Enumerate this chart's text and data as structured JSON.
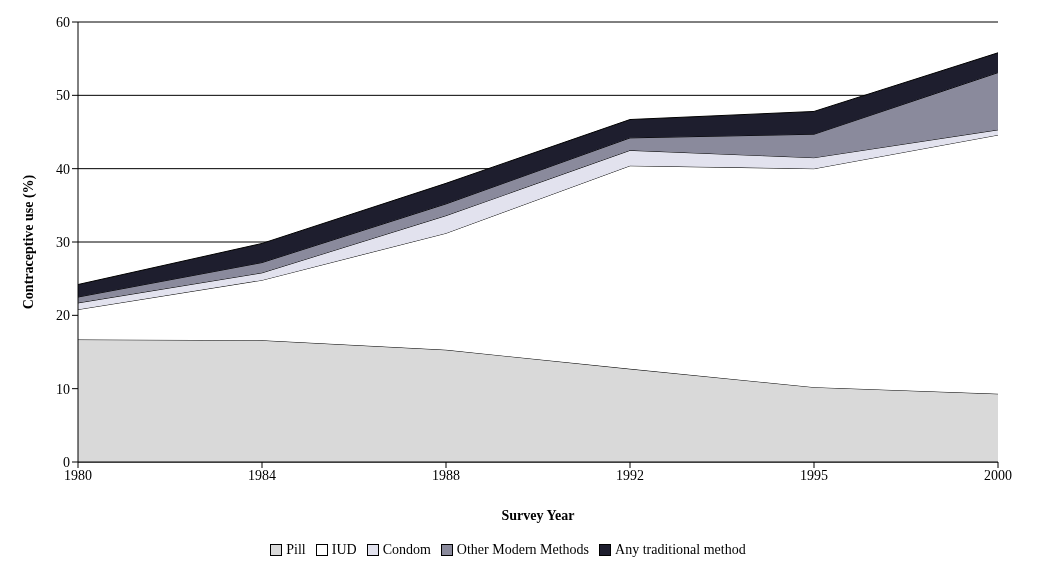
{
  "chart_data": {
    "type": "area",
    "stacked": true,
    "xlabel": "Survey Year",
    "ylabel": "Contraceptive use (%)",
    "categories": [
      "1980",
      "1984",
      "1988",
      "1992",
      "1995",
      "2000"
    ],
    "series": [
      {
        "name": "Pill",
        "color": "#d9d9d9",
        "values": [
          16.7,
          16.6,
          15.3,
          12.7,
          10.2,
          9.3
        ]
      },
      {
        "name": "IUD",
        "color": "#ffffff",
        "values": [
          4.1,
          8.2,
          15.9,
          27.7,
          29.8,
          35.3
        ]
      },
      {
        "name": "Condom",
        "color": "#e2e2ee",
        "values": [
          0.9,
          1.0,
          2.4,
          2.1,
          1.5,
          0.7
        ]
      },
      {
        "name": "Other Modern Methods",
        "color": "#8a8a9c",
        "values": [
          0.8,
          1.4,
          1.6,
          1.7,
          3.2,
          7.8
        ]
      },
      {
        "name": "Any traditional method",
        "color": "#1e1e2e",
        "values": [
          1.7,
          2.6,
          2.8,
          2.5,
          3.1,
          2.7
        ]
      }
    ],
    "ylim": [
      0,
      60
    ],
    "yticks": [
      0,
      10,
      20,
      30,
      40,
      50,
      60
    ],
    "grid": "y",
    "legend": "bottom"
  }
}
